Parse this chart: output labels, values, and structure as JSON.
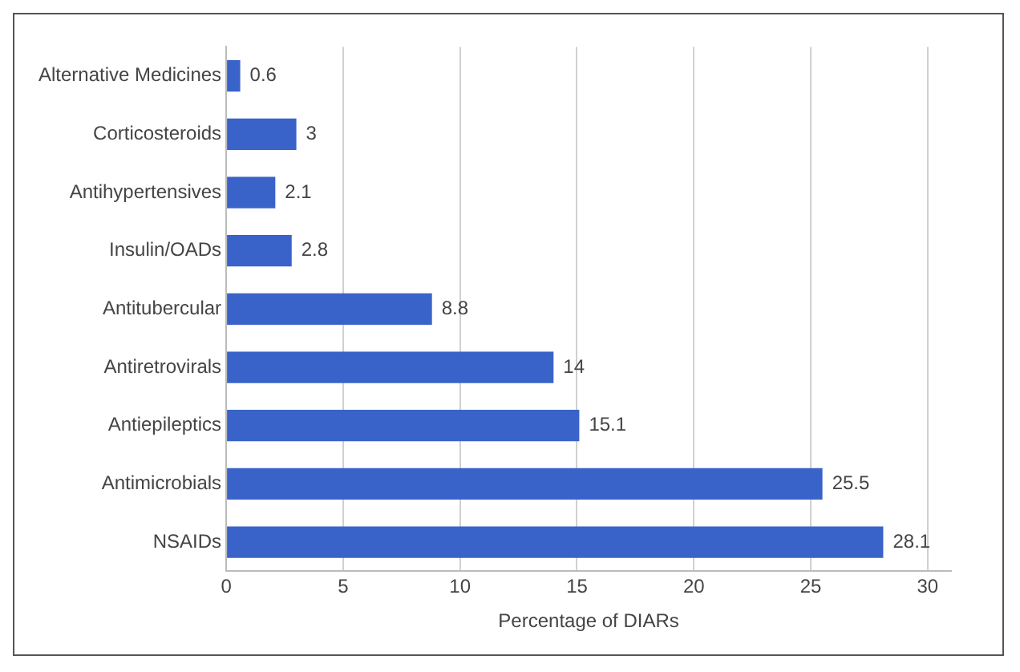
{
  "chart_data": {
    "type": "bar",
    "orientation": "horizontal",
    "xlabel": "Percentage of DIARs",
    "categories": [
      "Alternative Medicines",
      "Corticosteroids",
      "Antihypertensives",
      "Insulin/OADs",
      "Antitubercular",
      "Antiretrovirals",
      "Antiepileptics",
      "Antimicrobials",
      "NSAIDs"
    ],
    "values": [
      0.6,
      3,
      2.1,
      2.8,
      8.8,
      14,
      15.1,
      25.5,
      28.1
    ],
    "color": "#3a63c9",
    "xlim": [
      0,
      31
    ],
    "xticks": [
      0,
      5,
      10,
      15,
      20,
      25,
      30
    ],
    "grid": "x",
    "data_labels": true,
    "legend": false
  }
}
